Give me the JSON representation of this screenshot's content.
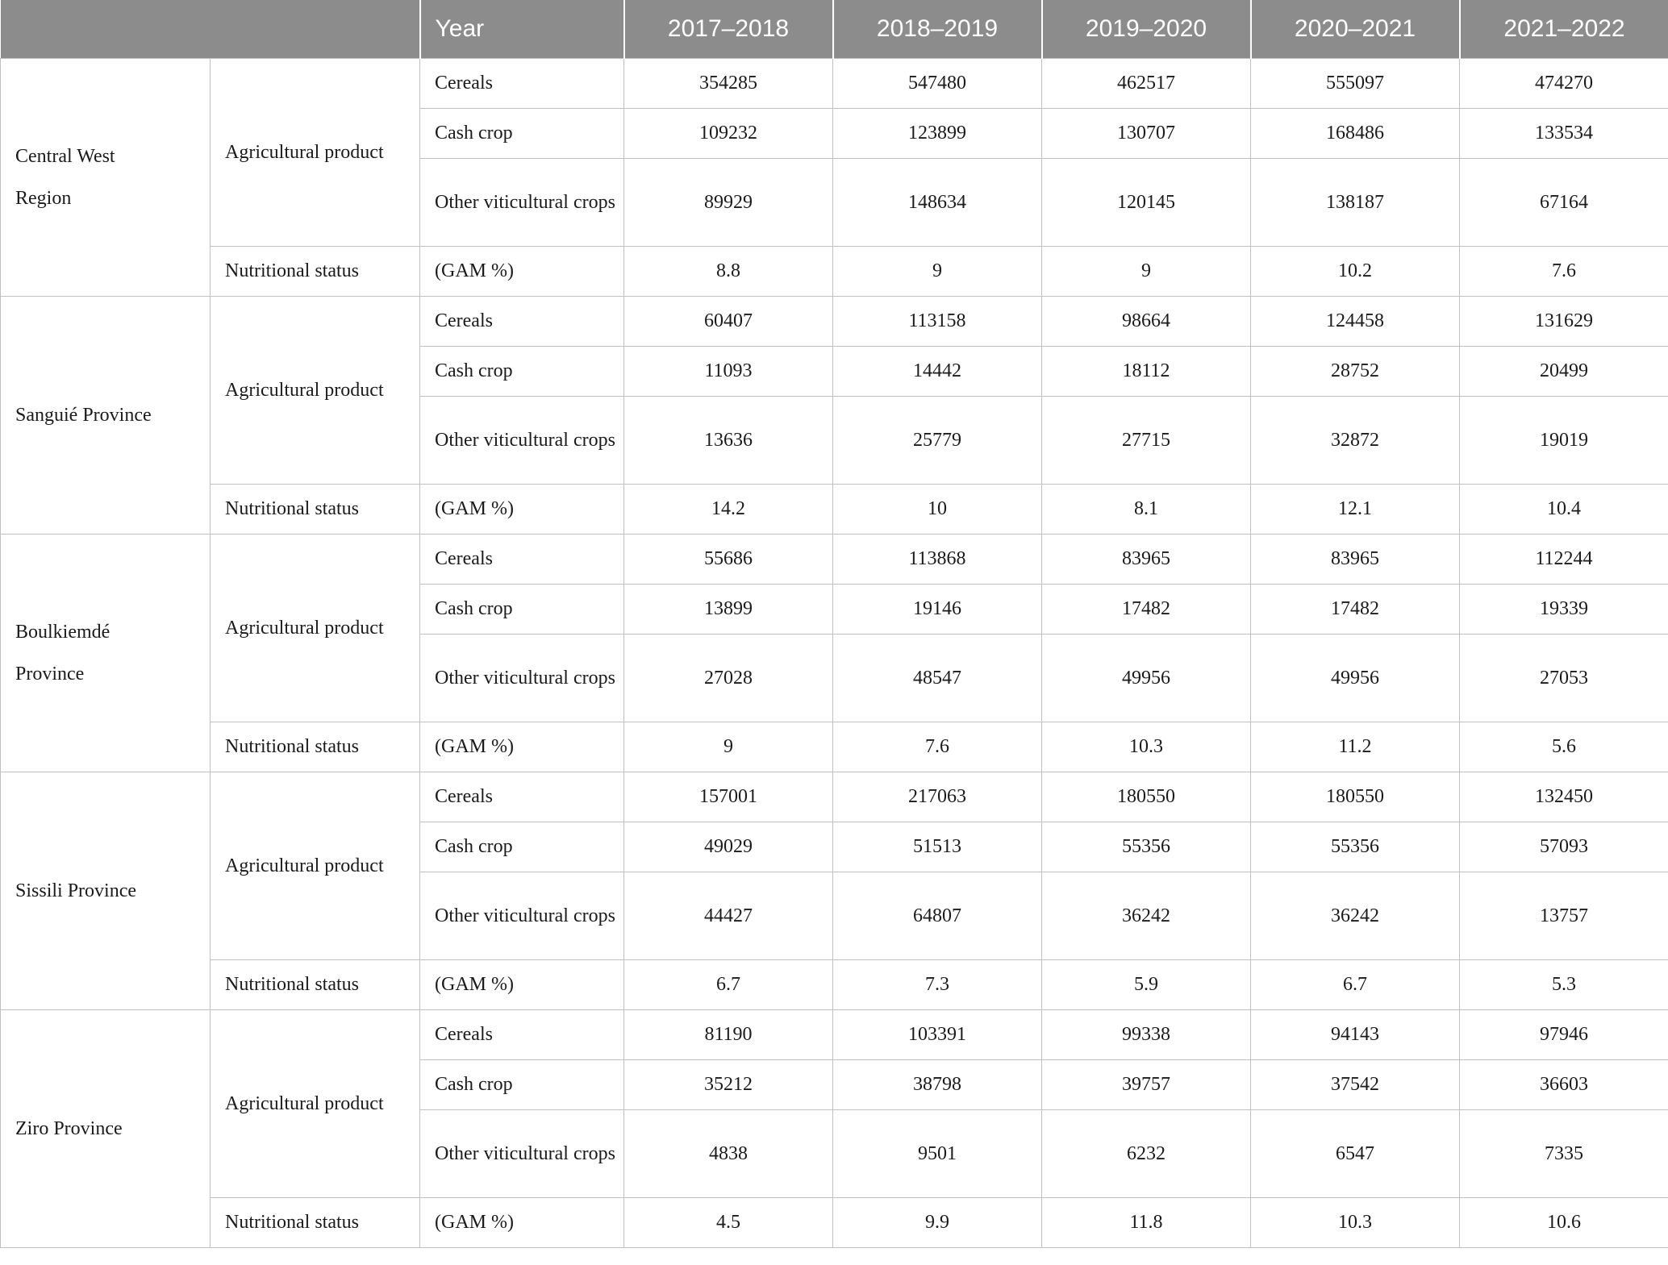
{
  "labels": {
    "year": "Year",
    "agricultural_product": "Agricultural product",
    "nutritional_status": "Nutritional status",
    "cereals": "Cereals",
    "cash_crop": "Cash crop",
    "other_viticultural_crops": "Other viticultural crops",
    "gam_percent": "(GAM %)"
  },
  "years": [
    "2017–2018",
    "2018–2019",
    "2019–2020",
    "2020–2021",
    "2021–2022"
  ],
  "regions": [
    {
      "name": "Central West Region",
      "cereals": [
        "354285",
        "547480",
        "462517",
        "555097",
        "474270"
      ],
      "cash_crop": [
        "109232",
        "123899",
        "130707",
        "168486",
        "133534"
      ],
      "other_viticultural_crops": [
        "89929",
        "148634",
        "120145",
        "138187",
        "67164"
      ],
      "gam_percent": [
        "8.8",
        "9",
        "9",
        "10.2",
        "7.6"
      ]
    },
    {
      "name": "Sanguié Province",
      "cereals": [
        "60407",
        "113158",
        "98664",
        "124458",
        "131629"
      ],
      "cash_crop": [
        "11093",
        "14442",
        "18112",
        "28752",
        "20499"
      ],
      "other_viticultural_crops": [
        "13636",
        "25779",
        "27715",
        "32872",
        "19019"
      ],
      "gam_percent": [
        "14.2",
        "10",
        "8.1",
        "12.1",
        "10.4"
      ]
    },
    {
      "name": "Boulkiemdé Province",
      "cereals": [
        "55686",
        "113868",
        "83965",
        "83965",
        "112244"
      ],
      "cash_crop": [
        "13899",
        "19146",
        "17482",
        "17482",
        "19339"
      ],
      "other_viticultural_crops": [
        "27028",
        "48547",
        "49956",
        "49956",
        "27053"
      ],
      "gam_percent": [
        "9",
        "7.6",
        "10.3",
        "11.2",
        "5.6"
      ]
    },
    {
      "name": "Sissili Province",
      "cereals": [
        "157001",
        "217063",
        "180550",
        "180550",
        "132450"
      ],
      "cash_crop": [
        "49029",
        "51513",
        "55356",
        "55356",
        "57093"
      ],
      "other_viticultural_crops": [
        "44427",
        "64807",
        "36242",
        "36242",
        "13757"
      ],
      "gam_percent": [
        "6.7",
        "7.3",
        "5.9",
        "6.7",
        "5.3"
      ]
    },
    {
      "name": "Ziro Province",
      "cereals": [
        "81190",
        "103391",
        "99338",
        "94143",
        "97946"
      ],
      "cash_crop": [
        "35212",
        "38798",
        "39757",
        "37542",
        "36603"
      ],
      "other_viticultural_crops": [
        "4838",
        "9501",
        "6232",
        "6547",
        "7335"
      ],
      "gam_percent": [
        "4.5",
        "9.9",
        "11.8",
        "10.3",
        "10.6"
      ]
    }
  ],
  "colors": {
    "header_bg": "#8c8c8c",
    "header_text": "#ffffff",
    "body_text": "#1b1b1b",
    "border": "#c0c0c0"
  }
}
